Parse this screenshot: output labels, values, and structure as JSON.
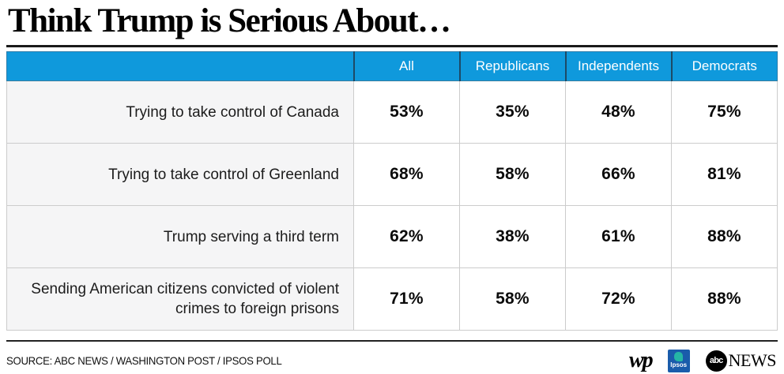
{
  "title": "Think Trump is Serious About…",
  "table": {
    "corner_label": "",
    "columns": [
      "All",
      "Republicans",
      "Independents",
      "Democrats"
    ],
    "rows": [
      {
        "label": "Trying to take control of Canada",
        "values": [
          "53%",
          "35%",
          "48%",
          "75%"
        ]
      },
      {
        "label": "Trying to take control of Greenland",
        "values": [
          "68%",
          "58%",
          "66%",
          "81%"
        ]
      },
      {
        "label": "Trump serving a third term",
        "values": [
          "62%",
          "38%",
          "61%",
          "88%"
        ]
      },
      {
        "label": "Sending American citizens convicted of violent crimes to foreign prisons",
        "values": [
          "71%",
          "58%",
          "72%",
          "88%"
        ]
      }
    ]
  },
  "chart_data": {
    "type": "table",
    "title": "Think Trump is Serious About…",
    "columns": [
      "All",
      "Republicans",
      "Independents",
      "Democrats"
    ],
    "rows": [
      "Trying to take control of Canada",
      "Trying to take control of Greenland",
      "Trump serving a third term",
      "Sending American citizens convicted of violent crimes to foreign prisons"
    ],
    "series": [
      {
        "name": "All",
        "values": [
          53,
          68,
          62,
          71
        ]
      },
      {
        "name": "Republicans",
        "values": [
          35,
          58,
          38,
          58
        ]
      },
      {
        "name": "Independents",
        "values": [
          48,
          66,
          61,
          72
        ]
      },
      {
        "name": "Democrats",
        "values": [
          75,
          81,
          88,
          88
        ]
      }
    ],
    "unit": "%"
  },
  "footer": {
    "source": "SOURCE: ABC NEWS / WASHINGTON POST / IPSOS POLL",
    "wp_logo_text": "wp",
    "ipsos_logo_text": "Ipsos",
    "abc_logo_text": "abc",
    "abc_news_text": "NEWS"
  },
  "colors": {
    "header_bg": "#0f99dc",
    "header_text": "#ffffff",
    "row_label_bg": "#f5f5f6",
    "grid_line": "#cccccc",
    "ipsos_blue": "#1a5cab",
    "ipsos_teal": "#25b6a5"
  }
}
